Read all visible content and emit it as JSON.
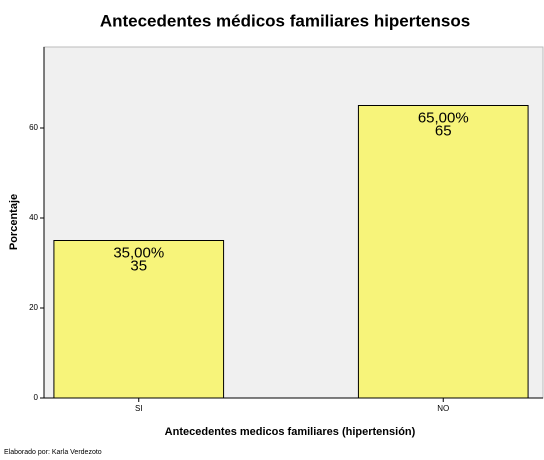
{
  "chart_data": {
    "type": "bar",
    "title": "Antecedentes médicos familiares hipertensos",
    "xlabel": "Antecedentes medicos familiares (hipertensión)",
    "ylabel": "Porcentaje",
    "footer": "Elaborado por: Karla Verdezoto",
    "categories": [
      "SI",
      "NO"
    ],
    "values": [
      35,
      65
    ],
    "value_labels": [
      "35,00%",
      "65,00%"
    ],
    "color": "#f7f47a",
    "ylim": [
      0,
      78
    ],
    "yticks": [
      0,
      20,
      40,
      60
    ]
  }
}
